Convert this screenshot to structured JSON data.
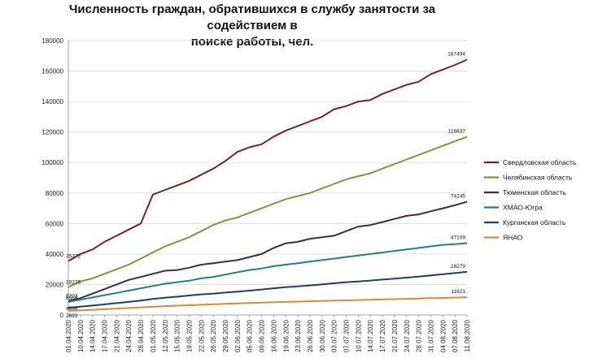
{
  "chart_data": {
    "type": "line",
    "title_line1": "Численность граждан, обратившихся в службу занятости за содействием в",
    "title_line2": "поиске работы, чел.",
    "ylim": [
      0,
      180000
    ],
    "y_ticks": [
      "0",
      "20000",
      "40000",
      "60000",
      "80000",
      "100000",
      "120000",
      "140000",
      "160000",
      "180000"
    ],
    "x_ticks": [
      "01.04.2020",
      "10.04.2020",
      "14.04.2020",
      "17.04.2020",
      "21.04.2020",
      "24.04.2020",
      "28.04.2020",
      "01.05.2020",
      "12.05.2020",
      "15.05.2020",
      "19.05.2020",
      "22.05.2020",
      "26.05.2020",
      "29.05.2020",
      "02.06.2020",
      "05.06.2020",
      "09.06.2020",
      "16.06.2020",
      "19.06.2020",
      "23.06.2020",
      "26.06.2020",
      "30.06.2020",
      "03.07.2020",
      "07.07.2020",
      "10.07.2020",
      "14.07.2020",
      "17.07.2020",
      "21.07.2020",
      "24.07.2020",
      "28.07.2020",
      "31.07.2020",
      "04.08.2020",
      "07.08.2020",
      "11.08.2020"
    ],
    "grid": "horizontal",
    "legend_position": "right",
    "series": [
      {
        "name": "Свердловская область",
        "color": "#7b2323",
        "first_label": "35372",
        "last_label": "167494",
        "values": [
          35372,
          40000,
          43000,
          48000,
          52000,
          56000,
          60000,
          79000,
          82000,
          85000,
          88000,
          92000,
          96000,
          101000,
          107000,
          110000,
          112000,
          117000,
          121000,
          124000,
          127000,
          130000,
          135000,
          137000,
          140000,
          141000,
          145000,
          148000,
          151000,
          153000,
          158000,
          161000,
          164000,
          167494
        ]
      },
      {
        "name": "Челябинская область",
        "color": "#7a9a3a",
        "first_label": "18276",
        "last_label": "116837",
        "values": [
          18276,
          22000,
          24000,
          27000,
          30000,
          33000,
          37000,
          41000,
          45000,
          48000,
          51000,
          55000,
          59000,
          62000,
          64000,
          67000,
          70000,
          73000,
          76000,
          78000,
          80000,
          83000,
          86000,
          89000,
          91000,
          93000,
          96000,
          99000,
          102000,
          105000,
          108000,
          111000,
          114000,
          116837
        ]
      },
      {
        "name": "Тюменская область",
        "color": "#3a2a55",
        "first_label": "9203",
        "last_label": "74245",
        "values": [
          9203,
          11000,
          14000,
          17000,
          20000,
          23000,
          25000,
          27000,
          29000,
          29500,
          31000,
          33000,
          34000,
          35000,
          36000,
          38000,
          40000,
          44000,
          47000,
          48000,
          50000,
          51000,
          52000,
          55000,
          58000,
          59000,
          61000,
          63000,
          65000,
          66000,
          68000,
          70000,
          72000,
          74245
        ]
      },
      {
        "name": "ХМАО-Югра",
        "color": "#1f7f8f",
        "first_label": "8568",
        "last_label": "47109",
        "values": [
          8568,
          10000,
          11500,
          13000,
          14500,
          16000,
          17500,
          19000,
          20500,
          21500,
          22500,
          24000,
          25000,
          26500,
          28000,
          29500,
          30500,
          32000,
          33000,
          34000,
          35000,
          36000,
          37000,
          38000,
          39000,
          40000,
          41000,
          42000,
          43000,
          44000,
          45000,
          46000,
          46500,
          47109
        ]
      },
      {
        "name": "Курганская область",
        "color": "#1f3f66",
        "first_label": "4696",
        "last_label": "28279",
        "values": [
          4696,
          5500,
          6200,
          7000,
          7800,
          8600,
          9500,
          10500,
          11300,
          12000,
          12800,
          13500,
          14000,
          14700,
          15300,
          16000,
          16700,
          17500,
          18200,
          18800,
          19400,
          20000,
          20800,
          21500,
          22000,
          22600,
          23200,
          23800,
          24500,
          25200,
          26000,
          26800,
          27500,
          28279
        ]
      },
      {
        "name": "ЯНАО",
        "color": "#d98a3a",
        "first_label": "2693",
        "last_label": "11621",
        "values": [
          2693,
          3000,
          3400,
          3800,
          4200,
          4600,
          5000,
          5400,
          5800,
          6100,
          6400,
          6700,
          7000,
          7300,
          7600,
          7900,
          8100,
          8400,
          8600,
          8800,
          9000,
          9200,
          9400,
          9600,
          9800,
          10000,
          10200,
          10400,
          10600,
          10800,
          11000,
          11200,
          11400,
          11621
        ]
      }
    ]
  }
}
